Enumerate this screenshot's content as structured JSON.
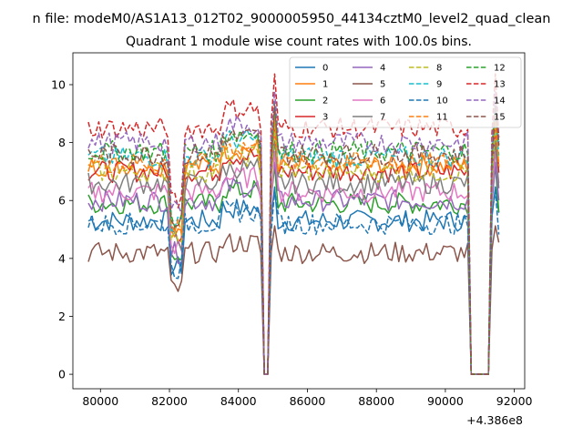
{
  "chart_data": {
    "type": "line",
    "suptitle": "n file: modeM0/AS1A13_012T02_9000005950_44134cztM0_level2_quad_clean",
    "title": "Quadrant 1 module wise count rates with 100.0s bins.",
    "xlabel": "",
    "ylabel": "",
    "x_offset_label": "+4.386e8",
    "xlim": [
      79200,
      92300
    ],
    "ylim": [
      -0.5,
      11.1
    ],
    "x_ticks": [
      80000,
      82000,
      84000,
      86000,
      88000,
      90000,
      92000
    ],
    "x_tick_labels": [
      "80000",
      "82000",
      "84000",
      "86000",
      "88000",
      "90000",
      "92000"
    ],
    "y_ticks": [
      0,
      2,
      4,
      6,
      8,
      10
    ],
    "y_tick_labels": [
      "0",
      "2",
      "4",
      "6",
      "8",
      "10"
    ],
    "bin_seconds": 100,
    "x_start": 79650,
    "x_end": 91550,
    "gaps": [
      {
        "from": 84750,
        "to": 84850,
        "value": 0
      },
      {
        "from": 90750,
        "to": 91250,
        "value": 0
      }
    ],
    "spikes": [
      {
        "x": 85050
      },
      {
        "x": 91450
      }
    ],
    "dips": [
      {
        "from": 82050,
        "to": 82350
      }
    ],
    "grid": false,
    "legend_placement": "top-right",
    "legend_columns": 4,
    "series": [
      {
        "name": "0",
        "level": 5.3,
        "color": "#1f77b4",
        "dash": "solid"
      },
      {
        "name": "1",
        "level": 7.2,
        "color": "#ff7f0e",
        "dash": "solid"
      },
      {
        "name": "2",
        "level": 5.9,
        "color": "#2ca02c",
        "dash": "solid"
      },
      {
        "name": "3",
        "level": 7.0,
        "color": "#d62728",
        "dash": "solid"
      },
      {
        "name": "4",
        "level": 6.0,
        "color": "#9467bd",
        "dash": "solid"
      },
      {
        "name": "5",
        "level": 4.2,
        "color": "#8c564b",
        "dash": "solid"
      },
      {
        "name": "6",
        "level": 6.3,
        "color": "#e377c2",
        "dash": "solid"
      },
      {
        "name": "7",
        "level": 6.6,
        "color": "#7f7f7f",
        "dash": "solid"
      },
      {
        "name": "8",
        "level": 7.0,
        "color": "#bcbd22",
        "dash": "dashed"
      },
      {
        "name": "9",
        "level": 7.5,
        "color": "#17becf",
        "dash": "dashed"
      },
      {
        "name": "10",
        "level": 5.2,
        "color": "#1f77b4",
        "dash": "dashed"
      },
      {
        "name": "11",
        "level": 7.3,
        "color": "#ff7f0e",
        "dash": "dashed"
      },
      {
        "name": "12",
        "level": 7.7,
        "color": "#2ca02c",
        "dash": "dashed"
      },
      {
        "name": "13",
        "level": 8.5,
        "color": "#d62728",
        "dash": "dashed"
      },
      {
        "name": "14",
        "level": 8.0,
        "color": "#9467bd",
        "dash": "dashed"
      },
      {
        "name": "15",
        "level": 7.6,
        "color": "#8c564b",
        "dash": "dashed"
      }
    ]
  }
}
